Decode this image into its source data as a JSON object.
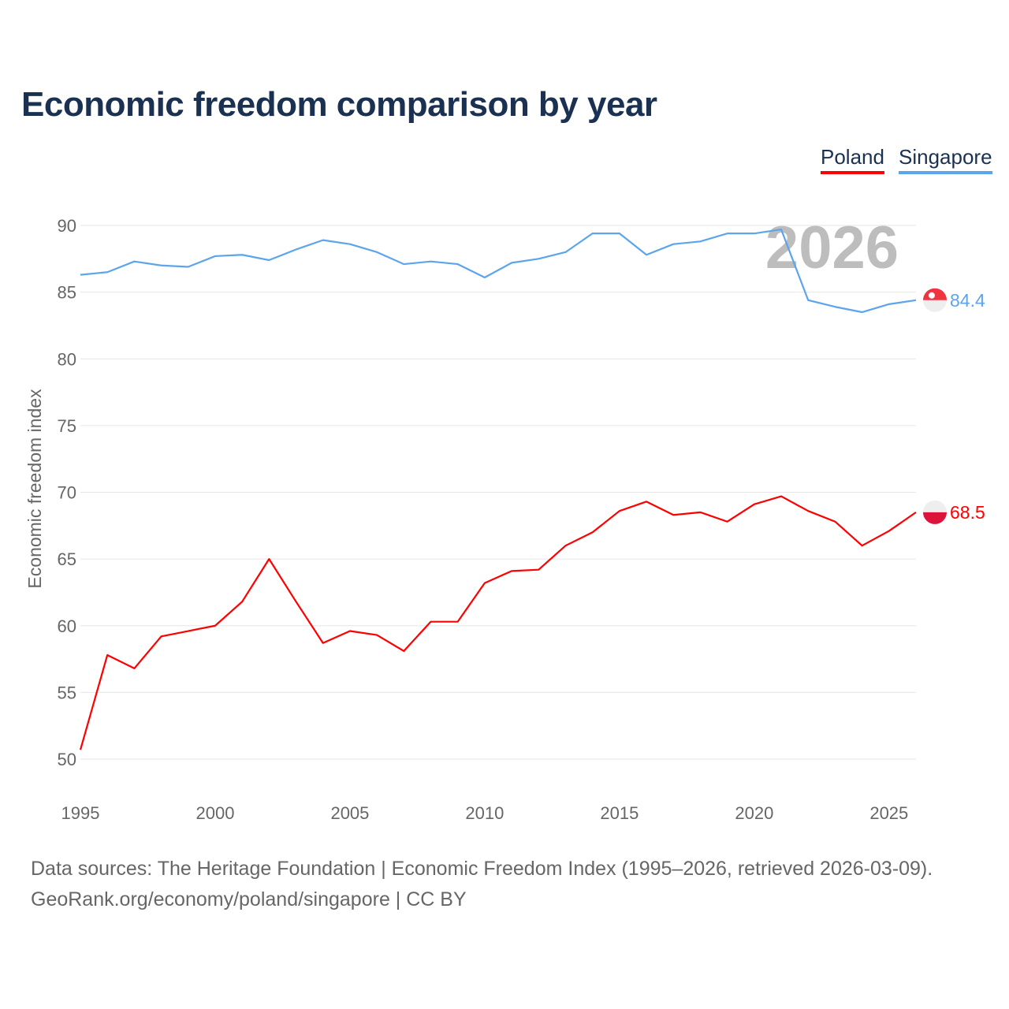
{
  "chart_data": {
    "type": "line",
    "title": "Economic freedom comparison by year",
    "xlabel": "",
    "ylabel": "Economic freedom index",
    "xlim": [
      1995,
      2026
    ],
    "ylim": [
      48,
      92
    ],
    "yticks": [
      50,
      55,
      60,
      65,
      70,
      75,
      80,
      85,
      90
    ],
    "xticks": [
      1995,
      2000,
      2005,
      2010,
      2015,
      2020,
      2025
    ],
    "grid": true,
    "legend_position": "top-right",
    "year_label": "2026",
    "x": [
      1995,
      1996,
      1997,
      1998,
      1999,
      2000,
      2001,
      2002,
      2003,
      2004,
      2005,
      2006,
      2007,
      2008,
      2009,
      2010,
      2011,
      2012,
      2013,
      2014,
      2015,
      2016,
      2017,
      2018,
      2019,
      2020,
      2021,
      2022,
      2023,
      2024,
      2025,
      2026
    ],
    "series": [
      {
        "name": "Poland",
        "color": "#ff0000",
        "end_label": "68.5",
        "values": [
          50.7,
          57.8,
          56.8,
          59.2,
          59.6,
          60.0,
          61.8,
          65.0,
          61.8,
          58.7,
          59.6,
          59.3,
          58.1,
          60.3,
          60.3,
          63.2,
          64.1,
          64.2,
          66.0,
          67.0,
          68.6,
          69.3,
          68.3,
          68.5,
          67.8,
          69.1,
          69.7,
          68.6,
          67.8,
          66.0,
          67.1,
          68.5
        ]
      },
      {
        "name": "Singapore",
        "color": "#5ca4ec",
        "end_label": "84.4",
        "values": [
          86.3,
          86.5,
          87.3,
          87.0,
          86.9,
          87.7,
          87.8,
          87.4,
          88.2,
          88.9,
          88.6,
          88.0,
          87.1,
          87.3,
          87.1,
          86.1,
          87.2,
          87.5,
          88.0,
          89.4,
          89.4,
          87.8,
          88.6,
          88.8,
          89.4,
          89.4,
          89.7,
          84.4,
          83.9,
          83.5,
          84.1,
          84.4
        ]
      }
    ]
  },
  "footer": {
    "line1": "Data sources: The Heritage Foundation | Economic Freedom Index (1995–2026, retrieved 2026-03-09).",
    "line2": "GeoRank.org/economy/poland/singapore | CC BY"
  }
}
